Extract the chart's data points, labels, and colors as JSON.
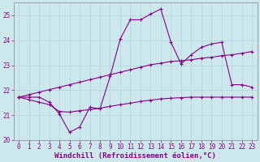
{
  "xlabel": "Windchill (Refroidissement éolien,°C)",
  "background_color": "#cce8ec",
  "line_color": "#880088",
  "marker": "+",
  "xlim": [
    -0.5,
    23.5
  ],
  "ylim": [
    20.0,
    25.5
  ],
  "yticks": [
    20,
    21,
    22,
    23,
    24,
    25
  ],
  "xticks": [
    0,
    1,
    2,
    3,
    4,
    5,
    6,
    7,
    8,
    9,
    10,
    11,
    12,
    13,
    14,
    15,
    16,
    17,
    18,
    19,
    20,
    21,
    22,
    23
  ],
  "series1_x": [
    0,
    1,
    2,
    3,
    4,
    5,
    6,
    7,
    8,
    9,
    10,
    11,
    12,
    13,
    14,
    15,
    16,
    17,
    18,
    19,
    20,
    21,
    22,
    23
  ],
  "series1_y": [
    21.72,
    21.72,
    21.72,
    21.52,
    21.05,
    20.32,
    20.52,
    21.32,
    21.25,
    22.55,
    24.05,
    24.82,
    24.82,
    25.05,
    25.25,
    23.92,
    23.05,
    23.42,
    23.72,
    23.85,
    23.92,
    22.22,
    22.22,
    22.12
  ],
  "series2_x": [
    0,
    1,
    2,
    3,
    4,
    5,
    6,
    7,
    8,
    9,
    10,
    11,
    12,
    13,
    14,
    15,
    16,
    17,
    18,
    19,
    20,
    21,
    22,
    23
  ],
  "series2_y": [
    21.72,
    21.82,
    21.92,
    22.02,
    22.12,
    22.22,
    22.32,
    22.42,
    22.52,
    22.62,
    22.72,
    22.82,
    22.92,
    23.02,
    23.08,
    23.15,
    23.18,
    23.22,
    23.28,
    23.32,
    23.38,
    23.42,
    23.48,
    23.55
  ],
  "series3_x": [
    0,
    1,
    2,
    3,
    4,
    5,
    6,
    7,
    8,
    9,
    10,
    11,
    12,
    13,
    14,
    15,
    16,
    17,
    18,
    19,
    20,
    21,
    22,
    23
  ],
  "series3_y": [
    21.72,
    21.62,
    21.52,
    21.42,
    21.15,
    21.12,
    21.18,
    21.22,
    21.28,
    21.35,
    21.42,
    21.48,
    21.55,
    21.6,
    21.65,
    21.68,
    21.7,
    21.72,
    21.72,
    21.72,
    21.72,
    21.72,
    21.72,
    21.72
  ],
  "grid_color": "#aed4d8",
  "axis_fontsize": 6.5,
  "tick_fontsize": 5.5,
  "marker_size": 3,
  "linewidth": 0.8
}
